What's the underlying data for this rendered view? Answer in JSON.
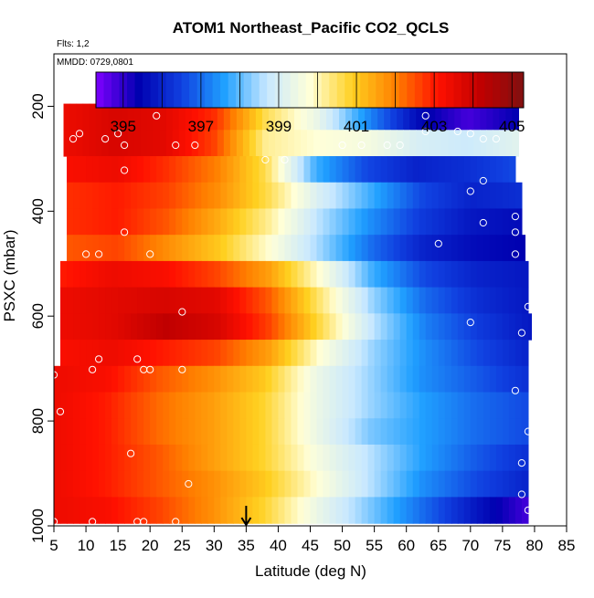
{
  "chart_data": {
    "type": "heatmap",
    "title": "ATOM1 Northeast_Pacific CO2_QCLS",
    "notes": [
      "Flts: 1,2",
      "MMDD: 0729,0801"
    ],
    "xlabel": "Latitude (deg N)",
    "ylabel": "PSXC (mbar)",
    "x_ticks": [
      5,
      10,
      15,
      20,
      25,
      30,
      35,
      40,
      45,
      50,
      55,
      60,
      65,
      70,
      75,
      80,
      85
    ],
    "y_ticks": [
      200,
      400,
      600,
      800,
      1000
    ],
    "xlim": [
      5,
      85
    ],
    "ylim": [
      1000,
      100
    ],
    "y_reversed": true,
    "grid": false,
    "colorbar": {
      "ticks": [
        395,
        397,
        399,
        401,
        403,
        405
      ],
      "range": [
        394.3,
        405.3
      ],
      "colors": [
        "#7f00ff",
        "#0000b0",
        "#1040e0",
        "#20a0ff",
        "#c8e8ff",
        "#ffffd8",
        "#ffd020",
        "#ff8000",
        "#ff1000",
        "#c00000",
        "#801010"
      ]
    },
    "marker": {
      "x": 35,
      "label": "arrow"
    },
    "bands": [
      {
        "p": 220,
        "lat_min": 6.5,
        "lat_max": 77.5,
        "values": [
          403.4,
          403.8,
          403.6,
          402.8,
          400.6,
          399.4,
          397.4,
          395.6,
          394.8,
          395.4
        ]
      },
      {
        "p": 270,
        "lat_min": 6.5,
        "lat_max": 77.5,
        "values": [
          403.4,
          403.8,
          403.6,
          402.6,
          400.2,
          399.8,
          399.6,
          399.0,
          398.8,
          399.2
        ]
      },
      {
        "p": 320,
        "lat_min": 7.0,
        "lat_max": 77.0,
        "values": [
          403.2,
          403.4,
          402.8,
          402.0,
          400.6,
          397.8,
          396.6,
          396.0,
          396.2,
          396.6
        ]
      },
      {
        "p": 370,
        "lat_min": 7.0,
        "lat_max": 78.0,
        "values": [
          402.8,
          403.0,
          402.6,
          401.8,
          400.6,
          399.0,
          397.8,
          396.6,
          396.0,
          396.2
        ]
      },
      {
        "p": 420,
        "lat_min": 7.0,
        "lat_max": 78.0,
        "values": [
          402.8,
          403.0,
          402.4,
          401.4,
          400.2,
          398.6,
          397.4,
          396.4,
          395.8,
          395.6
        ]
      },
      {
        "p": 470,
        "lat_min": 7.0,
        "lat_max": 78.5,
        "values": [
          402.4,
          402.6,
          401.8,
          401.0,
          399.8,
          398.4,
          397.0,
          396.0,
          395.6,
          395.4
        ]
      },
      {
        "p": 520,
        "lat_min": 6.0,
        "lat_max": 79.0,
        "values": [
          403.0,
          403.4,
          403.2,
          402.6,
          401.6,
          399.8,
          397.8,
          396.6,
          396.0,
          395.8
        ]
      },
      {
        "p": 570,
        "lat_min": 6.0,
        "lat_max": 79.0,
        "values": [
          403.4,
          403.6,
          403.8,
          403.6,
          402.4,
          400.4,
          398.4,
          397.0,
          396.2,
          395.8
        ]
      },
      {
        "p": 620,
        "lat_min": 6.0,
        "lat_max": 79.5,
        "values": [
          403.4,
          403.6,
          404.2,
          403.8,
          402.6,
          400.6,
          398.6,
          397.2,
          396.4,
          395.8
        ]
      },
      {
        "p": 670,
        "lat_min": 6.0,
        "lat_max": 79.0,
        "values": [
          403.2,
          403.4,
          403.0,
          402.6,
          401.6,
          399.8,
          398.4,
          397.4,
          396.6,
          396.0
        ]
      },
      {
        "p": 720,
        "lat_min": 5.0,
        "lat_max": 79.0,
        "values": [
          403.4,
          403.2,
          402.4,
          401.8,
          401.0,
          399.4,
          398.4,
          397.4,
          396.8,
          396.2
        ]
      },
      {
        "p": 770,
        "lat_min": 5.0,
        "lat_max": 79.0,
        "values": [
          403.4,
          403.0,
          402.2,
          401.6,
          400.8,
          399.4,
          398.4,
          397.6,
          397.0,
          396.6
        ]
      },
      {
        "p": 820,
        "lat_min": 5.0,
        "lat_max": 79.0,
        "values": [
          403.4,
          403.0,
          402.2,
          401.6,
          400.8,
          399.4,
          398.2,
          397.6,
          397.0,
          396.6
        ]
      },
      {
        "p": 870,
        "lat_min": 5.0,
        "lat_max": 79.0,
        "values": [
          403.4,
          403.0,
          402.4,
          401.6,
          400.8,
          399.6,
          398.6,
          397.6,
          396.8,
          396.2
        ]
      },
      {
        "p": 920,
        "lat_min": 5.0,
        "lat_max": 79.0,
        "values": [
          403.4,
          403.0,
          402.4,
          401.8,
          401.0,
          399.8,
          398.6,
          397.4,
          396.6,
          396.0
        ]
      },
      {
        "p": 970,
        "lat_min": 5.0,
        "lat_max": 79.0,
        "values": [
          403.4,
          403.2,
          402.6,
          401.8,
          400.8,
          399.4,
          398.2,
          397.0,
          395.8,
          394.8
        ]
      }
    ],
    "points": [
      [
        8,
        262
      ],
      [
        9,
        252
      ],
      [
        13,
        262
      ],
      [
        15,
        252
      ],
      [
        21,
        218
      ],
      [
        16,
        274
      ],
      [
        24,
        274
      ],
      [
        27,
        274
      ],
      [
        38,
        302
      ],
      [
        41,
        302
      ],
      [
        16,
        322
      ],
      [
        50,
        274
      ],
      [
        53,
        274
      ],
      [
        57,
        274
      ],
      [
        59,
        274
      ],
      [
        63,
        218
      ],
      [
        63,
        248
      ],
      [
        68,
        248
      ],
      [
        70,
        252
      ],
      [
        72,
        262
      ],
      [
        74,
        262
      ],
      [
        70,
        362
      ],
      [
        72,
        342
      ],
      [
        72,
        422
      ],
      [
        77,
        410
      ],
      [
        77,
        440
      ],
      [
        65,
        462
      ],
      [
        77,
        482
      ],
      [
        10,
        482
      ],
      [
        12,
        482
      ],
      [
        16,
        440
      ],
      [
        20,
        482
      ],
      [
        25,
        592
      ],
      [
        70,
        612
      ],
      [
        79,
        582
      ],
      [
        78,
        632
      ],
      [
        11,
        702
      ],
      [
        12,
        682
      ],
      [
        18,
        682
      ],
      [
        19,
        702
      ],
      [
        20,
        702
      ],
      [
        25,
        702
      ],
      [
        5,
        712
      ],
      [
        6,
        782
      ],
      [
        77,
        742
      ],
      [
        79,
        820
      ],
      [
        78,
        880
      ],
      [
        17,
        862
      ],
      [
        26,
        920
      ],
      [
        78,
        940
      ],
      [
        79,
        970
      ],
      [
        5,
        992
      ],
      [
        11,
        992
      ],
      [
        18,
        992
      ],
      [
        19,
        992
      ],
      [
        24,
        992
      ]
    ]
  }
}
